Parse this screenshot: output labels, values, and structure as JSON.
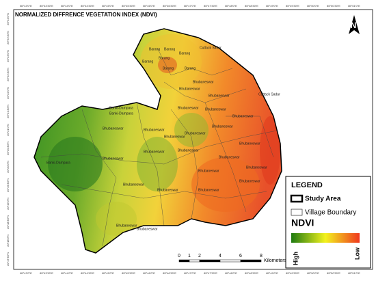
{
  "title": "NORMALIZED DIFFRENCE VEGETATION INDEX (NDVI)",
  "north": "N",
  "coordinates": {
    "top": [
      "85°43'0\"E",
      "85°43'30\"E",
      "85°44'0\"E",
      "85°44'30\"E",
      "85°45'0\"E",
      "85°45'30\"E",
      "85°46'0\"E",
      "85°46'30\"E",
      "85°47'0\"E",
      "85°47'30\"E",
      "85°48'0\"E",
      "85°48'30\"E",
      "85°49'0\"E",
      "85°49'30\"E",
      "85°50'0\"E",
      "85°50'30\"E",
      "85°51'0\"E"
    ],
    "left": [
      "20°24'0\"N",
      "20°23'30\"N",
      "20°23'0\"N",
      "20°22'30\"N",
      "20°22'0\"N",
      "20°21'30\"N",
      "20°21'0\"N",
      "20°20'30\"N",
      "20°20'0\"N",
      "20°19'30\"N",
      "20°19'0\"N",
      "20°18'30\"N",
      "20°18'0\"N",
      "20°17'30\"N"
    ]
  },
  "places": [
    "Cuttack Sadar",
    "Barang",
    "Barang",
    "Barang",
    "Barang",
    "Barang",
    "Barang",
    "Barang",
    "Bhubaneswar",
    "Bhubaneswar",
    "Bhubaneswar",
    "Cuttack Sadar",
    "Bhubaneswar",
    "Bhubaneswar",
    "Banki-Dampara",
    "Banki-Dampara",
    "Bhubaneswar",
    "Bhubaneswar",
    "Bhubaneswar",
    "Bhubaneswar",
    "Bhubaneswar",
    "Bhubaneswar",
    "Banki-Dampara",
    "Bhubaneswar",
    "Bhubaneswar",
    "Bhubaneswar",
    "Bhubaneswar",
    "Bhubaneswar",
    "Bhubaneswar",
    "Bhubaneswar",
    "Bhubaneswar",
    "Bhubaneswar",
    "Bhubaneswar",
    "Bhubaneswar",
    "Bhubaneswar",
    "Bhubaneswar"
  ],
  "scale": {
    "ticks": [
      0,
      1,
      2,
      4,
      6,
      8
    ],
    "unit": "Kilometers"
  },
  "legend": {
    "title": "LEGEND",
    "items": [
      "Study Area",
      "Village Boundary"
    ],
    "ndvi": "NDVI",
    "high": "High",
    "low": "Low"
  }
}
